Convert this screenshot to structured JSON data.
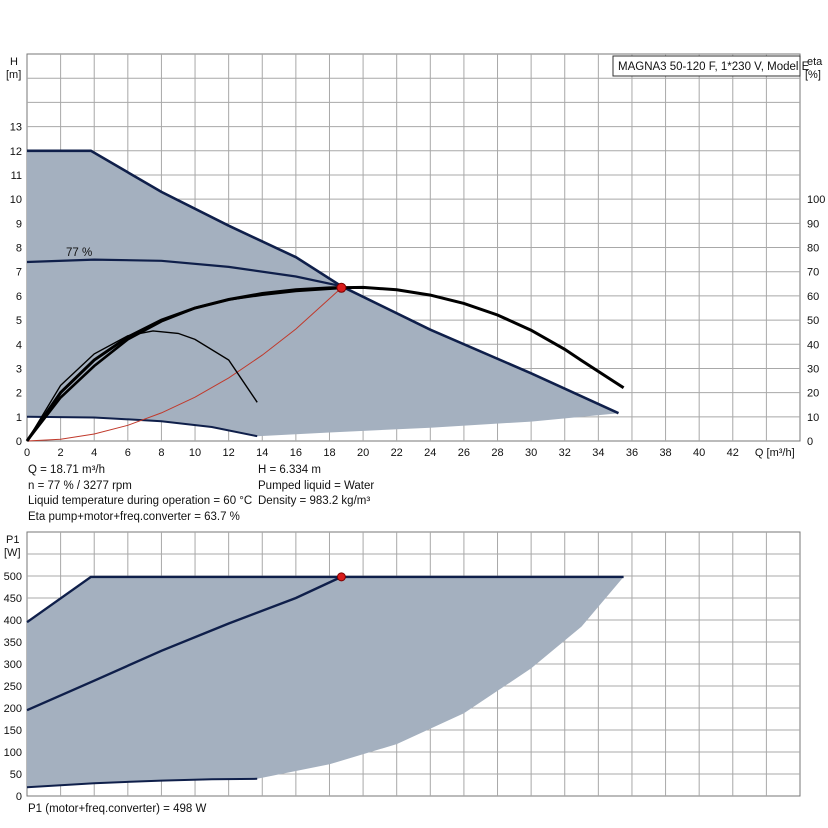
{
  "colors": {
    "area": "#a4b0bf",
    "envelope": "#0f1f4a",
    "curve": "#000000",
    "system": "#c0392b",
    "point": "#d91c1c",
    "grid": "#a8a8a8"
  },
  "title_box": "MAGNA3 50-120 F, 1*230 V, Model E",
  "eff_label": "77 %",
  "info": {
    "left": [
      "Q = 18.71 m³/h",
      "n = 77 % / 3277 rpm",
      "Liquid temperature during operation = 60 °C",
      "Eta pump+motor+freq.converter = 63.7 %"
    ],
    "right": [
      "H = 6.334 m",
      "Pumped liquid = Water",
      "Density = 983.2 kg/m³"
    ]
  },
  "p1_result": "P1 (motor+freq.converter) = 498 W",
  "chart_data": [
    {
      "type": "line",
      "xlabel": "Q [m³/h]",
      "ylabel": [
        "H",
        "[m]"
      ],
      "y2label": [
        "eta",
        "[%]"
      ],
      "xlim": [
        0,
        46
      ],
      "ylim": [
        0,
        16
      ],
      "y2lim": [
        0,
        160
      ],
      "xticks": [
        "0",
        "2",
        "4",
        "6",
        "8",
        "10",
        "12",
        "14",
        "16",
        "18",
        "20",
        "22",
        "24",
        "26",
        "28",
        "30",
        "32",
        "34",
        "36",
        "38",
        "40",
        "42"
      ],
      "yticks": [
        "0",
        "1",
        "2",
        "3",
        "4",
        "5",
        "6",
        "7",
        "8",
        "9",
        "10",
        "11",
        "12",
        "13"
      ],
      "y2ticks": [
        "0",
        "10",
        "20",
        "30",
        "40",
        "50",
        "60",
        "70",
        "80",
        "90",
        "100"
      ],
      "grid": true,
      "series": [
        {
          "role": "max-envelope",
          "points": [
            [
              0,
              12
            ],
            [
              3.8,
              12
            ],
            [
              8,
              10.3
            ],
            [
              12,
              8.9
            ],
            [
              16,
              7.6
            ],
            [
              18.71,
              6.4
            ],
            [
              24,
              4.6
            ],
            [
              30,
              2.8
            ],
            [
              35.2,
              1.15
            ]
          ]
        },
        {
          "role": "min-envelope",
          "points": [
            [
              0,
              1
            ],
            [
              4,
              0.97
            ],
            [
              8,
              0.82
            ],
            [
              11,
              0.58
            ],
            [
              13.7,
              0.2
            ]
          ]
        },
        {
          "role": "lower-area-bound",
          "points": [
            [
              13.7,
              0.2
            ],
            [
              18,
              0.35
            ],
            [
              24,
              0.55
            ],
            [
              30,
              0.8
            ],
            [
              35.2,
              1.15
            ]
          ]
        },
        {
          "role": "efficiency-curve",
          "points": [
            [
              0,
              7.4
            ],
            [
              4,
              7.5
            ],
            [
              8,
              7.45
            ],
            [
              12,
              7.2
            ],
            [
              16,
              6.8
            ],
            [
              18.71,
              6.4
            ]
          ]
        },
        {
          "role": "duty-curve",
          "points": [
            [
              0,
              0
            ],
            [
              2,
              2
            ],
            [
              4,
              3.35
            ],
            [
              6,
              4.3
            ],
            [
              8,
              5
            ],
            [
              10,
              5.5
            ],
            [
              12,
              5.85
            ],
            [
              14,
              6.1
            ],
            [
              16,
              6.25
            ],
            [
              18,
              6.33
            ],
            [
              20,
              6.35
            ],
            [
              22,
              6.25
            ],
            [
              24,
              6.03
            ],
            [
              26,
              5.69
            ],
            [
              28,
              5.21
            ],
            [
              30,
              4.58
            ],
            [
              32,
              3.79
            ],
            [
              33,
              3.33
            ],
            [
              35.5,
              2.2
            ]
          ]
        },
        {
          "role": "eta-curve",
          "points": [
            [
              0,
              0
            ],
            [
              2,
              1.8
            ],
            [
              4,
              3.1
            ],
            [
              6,
              4.2
            ],
            [
              8,
              4.95
            ],
            [
              10,
              5.5
            ],
            [
              12,
              5.85
            ],
            [
              14,
              6.05
            ],
            [
              16,
              6.2
            ],
            [
              18.71,
              6.33
            ]
          ]
        },
        {
          "role": "eta-curve-thin",
          "points": [
            [
              0,
              0
            ],
            [
              2,
              2.3
            ],
            [
              4,
              3.6
            ],
            [
              6,
              4.35
            ],
            [
              7.5,
              4.55
            ],
            [
              9,
              4.45
            ],
            [
              10,
              4.2
            ],
            [
              12,
              3.35
            ],
            [
              13.7,
              1.6
            ]
          ]
        },
        {
          "role": "system-curve",
          "points": [
            [
              0,
              0
            ],
            [
              2,
              0.07
            ],
            [
              4,
              0.29
            ],
            [
              6,
              0.65
            ],
            [
              8,
              1.16
            ],
            [
              10,
              1.81
            ],
            [
              12,
              2.61
            ],
            [
              14,
              3.55
            ],
            [
              16,
              4.63
            ],
            [
              18.71,
              6.33
            ]
          ]
        }
      ],
      "duty_point": {
        "x": 18.71,
        "y": 6.334
      }
    },
    {
      "type": "line",
      "ylabel": [
        "P1",
        "[W]"
      ],
      "xlim": [
        0,
        46
      ],
      "ylim": [
        0,
        600
      ],
      "yticks": [
        "0",
        "50",
        "100",
        "150",
        "200",
        "250",
        "300",
        "350",
        "400",
        "450",
        "500"
      ],
      "grid": true,
      "series": [
        {
          "role": "max-envelope",
          "points": [
            [
              0,
              395
            ],
            [
              3.8,
              498
            ],
            [
              35.5,
              498
            ]
          ]
        },
        {
          "role": "duty-power",
          "points": [
            [
              0,
              195
            ],
            [
              4,
              262
            ],
            [
              8,
              330
            ],
            [
              12,
              392
            ],
            [
              16,
              450
            ],
            [
              18.71,
              498
            ]
          ]
        },
        {
          "role": "min-envelope",
          "points": [
            [
              0,
              20
            ],
            [
              4,
              29
            ],
            [
              8,
              35
            ],
            [
              11,
              38
            ],
            [
              13.7,
              39
            ]
          ]
        },
        {
          "role": "lower-area-bound",
          "points": [
            [
              13.7,
              39
            ],
            [
              18,
              72
            ],
            [
              22,
              118
            ],
            [
              26,
              188
            ],
            [
              30,
              290
            ],
            [
              33,
              385
            ],
            [
              35.5,
              498
            ]
          ]
        }
      ],
      "duty_point": {
        "x": 18.71,
        "y": 498
      }
    }
  ]
}
